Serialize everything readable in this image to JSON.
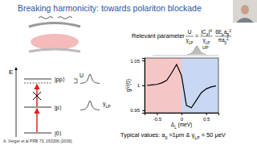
{
  "slide": {
    "title": "Breaking harmonicity: towards polariton blockade",
    "energy_label": "E",
    "levels": [
      "|0⟩",
      "|p⟩",
      "|pp⟩"
    ],
    "u_label": "U",
    "gamma_label": [
      "γ",
      {
        "sub": "LP"
      }
    ],
    "relevant_parameter": "Relevant parameter",
    "formula": {
      "lhs_num": "U",
      "lhs_den": [
        "γ",
        {
          "sub": "LP"
        }
      ],
      "relation": "=",
      "rhs1_num": [
        "|C",
        {
          "sub": "X"
        },
        "|",
        {
          "sup": "4"
        }
      ],
      "rhs1_den": [
        "γ",
        {
          "sub": "LP"
        }
      ],
      "rhs2_num": [
        "6E",
        {
          "sub": "b"
        },
        "a",
        {
          "sub": "B"
        },
        {
          "sup": "2"
        }
      ],
      "rhs2_den": [
        "πa",
        {
          "sub": "0"
        },
        {
          "sup": "2"
        }
      ]
    },
    "inset_label": "UP",
    "typical_values": [
      "Typical values: a",
      {
        "sub": "0"
      },
      " ≈1μm & γ",
      {
        "sub": "LP"
      },
      " ≈ 50 μeV"
    ],
    "citation": "A. Verger et al PRB 73, 193306 (2006)"
  },
  "chart_data": {
    "type": "line",
    "x_label": [
      "Δ",
      {
        "sub": "L"
      },
      " (meV)"
    ],
    "y_label": "g⁽²⁾(0)",
    "x": [
      -0.7,
      -0.6,
      -0.5,
      -0.4,
      -0.3,
      -0.2,
      -0.1,
      0,
      0.1,
      0.2,
      0.3,
      0.4,
      0.5,
      0.6,
      0.7
    ],
    "values": [
      1.0,
      1.001,
      1.002,
      1.005,
      1.01,
      1.025,
      1.042,
      1.02,
      0.96,
      0.955,
      0.97,
      0.985,
      0.993,
      0.997,
      0.999
    ],
    "color": "#000000",
    "regions": [
      {
        "x0": -0.75,
        "x1": 0,
        "color": "#f6c6c6"
      },
      {
        "x0": 0,
        "x1": 0.75,
        "color": "#c8d7f2"
      }
    ],
    "xlim": [
      -0.75,
      0.75
    ],
    "xticks": [
      -0.5,
      0,
      0.5
    ],
    "ylim": [
      0.945,
      1.055
    ],
    "yticks": [
      0.95,
      1,
      1.05
    ]
  }
}
